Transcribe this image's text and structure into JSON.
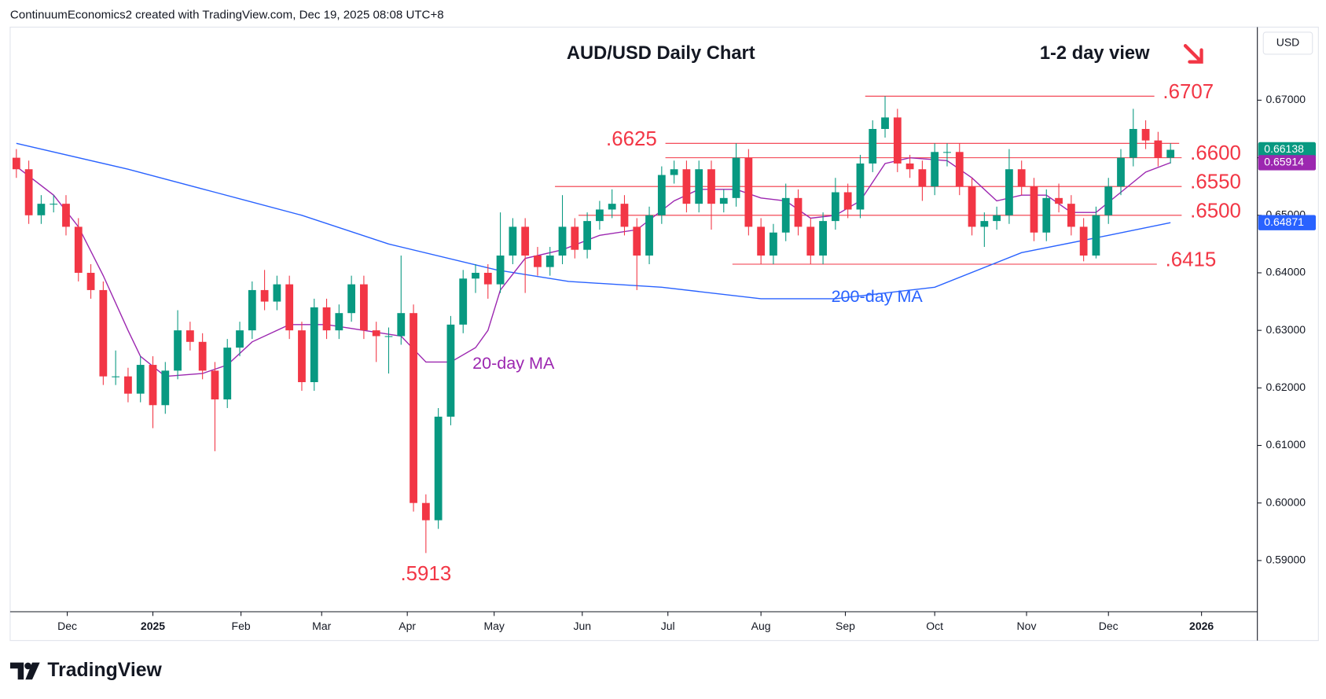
{
  "header": "ContinuumEconomics2 created with TradingView.com, Dec 19, 2025 08:08 UTC+8",
  "brand": "TradingView",
  "chart_data": {
    "type": "candlestick",
    "title": "AUD/USD Daily Chart",
    "annotation": "1-2 day view",
    "y_unit": "USD",
    "up_color": "#089981",
    "down_color": "#f23645",
    "grid": false,
    "open": [
      0.66,
      0.658,
      0.65,
      0.652,
      0.652,
      0.648,
      0.64,
      0.637,
      0.622,
      0.622,
      0.619,
      0.624,
      0.617,
      0.623,
      0.63,
      0.628,
      0.623,
      0.618,
      0.627,
      0.63,
      0.637,
      0.635,
      0.638,
      0.63,
      0.621,
      0.634,
      0.63,
      0.633,
      0.638,
      0.63,
      0.629,
      0.629,
      0.633,
      0.6,
      0.597,
      0.615,
      0.631,
      0.639,
      0.64,
      0.638,
      0.643,
      0.648,
      0.643,
      0.641,
      0.643,
      0.648,
      0.644,
      0.649,
      0.651,
      0.652,
      0.648,
      0.643,
      0.65,
      0.657,
      0.658,
      0.652,
      0.658,
      0.652,
      0.653,
      0.66,
      0.648,
      0.643,
      0.647,
      0.653,
      0.648,
      0.643,
      0.649,
      0.654,
      0.651,
      0.659,
      0.665,
      0.667,
      0.659,
      0.658,
      0.655,
      0.661,
      0.661,
      0.655,
      0.648,
      0.649,
      0.65,
      0.658,
      0.655,
      0.647,
      0.653,
      0.652,
      0.648,
      0.643,
      0.65,
      0.655,
      0.66,
      0.665,
      0.663,
      0.66
    ],
    "high": [
      0.6615,
      0.6595,
      0.6535,
      0.6535,
      0.6535,
      0.6495,
      0.6415,
      0.6385,
      0.6265,
      0.6235,
      0.6255,
      0.6255,
      0.6245,
      0.6335,
      0.6315,
      0.6295,
      0.6245,
      0.6285,
      0.6315,
      0.6385,
      0.6405,
      0.6395,
      0.6395,
      0.6315,
      0.6355,
      0.6355,
      0.6345,
      0.6395,
      0.6395,
      0.6315,
      0.6305,
      0.643,
      0.6345,
      0.6015,
      0.6165,
      0.6325,
      0.6405,
      0.6415,
      0.6415,
      0.6505,
      0.6495,
      0.6495,
      0.6445,
      0.6445,
      0.6535,
      0.6495,
      0.6505,
      0.6525,
      0.6545,
      0.6535,
      0.6495,
      0.6515,
      0.6585,
      0.6595,
      0.6595,
      0.6595,
      0.6595,
      0.6545,
      0.6625,
      0.6615,
      0.6495,
      0.6485,
      0.6555,
      0.6545,
      0.6495,
      0.6505,
      0.6565,
      0.6555,
      0.6605,
      0.6665,
      0.6707,
      0.6685,
      0.6605,
      0.6595,
      0.6625,
      0.6625,
      0.6625,
      0.6565,
      0.6505,
      0.6515,
      0.6615,
      0.6595,
      0.6565,
      0.6545,
      0.6555,
      0.6535,
      0.6495,
      0.6515,
      0.6565,
      0.6615,
      0.6685,
      0.6665,
      0.6645,
      0.6625
    ],
    "low": [
      0.6565,
      0.6485,
      0.6485,
      0.6505,
      0.6465,
      0.6385,
      0.6355,
      0.6205,
      0.6205,
      0.6175,
      0.6175,
      0.613,
      0.6155,
      0.6215,
      0.6265,
      0.6215,
      0.609,
      0.6165,
      0.6255,
      0.6285,
      0.6335,
      0.6335,
      0.6285,
      0.6195,
      0.6195,
      0.6285,
      0.6285,
      0.6315,
      0.6285,
      0.6245,
      0.6225,
      0.6275,
      0.5985,
      0.5913,
      0.5955,
      0.6135,
      0.6295,
      0.6365,
      0.6355,
      0.6365,
      0.6415,
      0.6365,
      0.6395,
      0.6395,
      0.6415,
      0.6425,
      0.6425,
      0.6475,
      0.6495,
      0.6465,
      0.637,
      0.6415,
      0.6485,
      0.6555,
      0.6505,
      0.6505,
      0.6475,
      0.6505,
      0.6515,
      0.6465,
      0.6415,
      0.6415,
      0.6455,
      0.6465,
      0.6415,
      0.6415,
      0.6475,
      0.6495,
      0.6495,
      0.6575,
      0.6635,
      0.6575,
      0.6565,
      0.6525,
      0.6535,
      0.6585,
      0.6535,
      0.6465,
      0.6445,
      0.6475,
      0.6485,
      0.6535,
      0.6455,
      0.6455,
      0.6505,
      0.6465,
      0.642,
      0.6425,
      0.6485,
      0.6535,
      0.6585,
      0.6615,
      0.6585,
      0.659
    ],
    "close": [
      0.658,
      0.65,
      0.652,
      0.652,
      0.648,
      0.64,
      0.637,
      0.622,
      0.622,
      0.619,
      0.624,
      0.617,
      0.623,
      0.63,
      0.628,
      0.623,
      0.618,
      0.627,
      0.63,
      0.637,
      0.635,
      0.638,
      0.63,
      0.621,
      0.634,
      0.63,
      0.633,
      0.638,
      0.63,
      0.629,
      0.629,
      0.633,
      0.6,
      0.597,
      0.615,
      0.631,
      0.639,
      0.64,
      0.638,
      0.643,
      0.648,
      0.643,
      0.641,
      0.643,
      0.648,
      0.644,
      0.649,
      0.651,
      0.652,
      0.648,
      0.643,
      0.65,
      0.657,
      0.658,
      0.652,
      0.658,
      0.652,
      0.653,
      0.66,
      0.648,
      0.643,
      0.647,
      0.653,
      0.648,
      0.643,
      0.649,
      0.654,
      0.651,
      0.659,
      0.665,
      0.667,
      0.659,
      0.658,
      0.655,
      0.661,
      0.661,
      0.655,
      0.648,
      0.649,
      0.65,
      0.658,
      0.655,
      0.647,
      0.653,
      0.652,
      0.648,
      0.643,
      0.65,
      0.655,
      0.66,
      0.665,
      0.663,
      0.66,
      0.66138
    ],
    "xlim": [
      -0.5,
      100
    ],
    "xticks": [
      {
        "value": 4.1,
        "label": "Dec"
      },
      {
        "value": 11,
        "label": "2025"
      },
      {
        "value": 18.1,
        "label": "Feb"
      },
      {
        "value": 24.6,
        "label": "Mar"
      },
      {
        "value": 31.5,
        "label": "Apr"
      },
      {
        "value": 38.5,
        "label": "May"
      },
      {
        "value": 45.6,
        "label": "Jun"
      },
      {
        "value": 52.5,
        "label": "Jul"
      },
      {
        "value": 60,
        "label": "Aug"
      },
      {
        "value": 66.8,
        "label": "Sep"
      },
      {
        "value": 74,
        "label": "Oct"
      },
      {
        "value": 81.4,
        "label": "Nov"
      },
      {
        "value": 88,
        "label": "Dec"
      },
      {
        "value": 95.5,
        "label": "2026"
      }
    ],
    "ylim": [
      0.5811,
      0.6827
    ],
    "yticks": [
      {
        "value": 0.59,
        "label": "0.59000"
      },
      {
        "value": 0.6,
        "label": "0.60000"
      },
      {
        "value": 0.61,
        "label": "0.61000"
      },
      {
        "value": 0.62,
        "label": "0.62000"
      },
      {
        "value": 0.63,
        "label": "0.63000"
      },
      {
        "value": 0.64,
        "label": "0.64000"
      },
      {
        "value": 0.65,
        "label": "0.65000"
      },
      {
        "value": 0.66,
        "label": "0.66000"
      },
      {
        "value": 0.67,
        "label": "0.67000"
      }
    ],
    "moving_averages": [
      {
        "name": "200-day MA",
        "color": "#2962ff",
        "x": [
          0,
          9,
          16,
          23,
          30,
          38.7,
          44.5,
          52,
          60,
          66,
          74,
          81,
          88,
          93
        ],
        "values": [
          0.6625,
          0.658,
          0.654,
          0.65,
          0.645,
          0.6405,
          0.6385,
          0.6375,
          0.6355,
          0.6355,
          0.6375,
          0.6435,
          0.6465,
          0.64871
        ]
      },
      {
        "name": "20-day MA",
        "color": "#9c27b0",
        "x": [
          0,
          3,
          5,
          7,
          9,
          10,
          12,
          15,
          17,
          19,
          22,
          25,
          28,
          31,
          33,
          35,
          37,
          38,
          39,
          41,
          44,
          47,
          50,
          53,
          55,
          58,
          60,
          62,
          64,
          66,
          68,
          70,
          72,
          75,
          77,
          79,
          81,
          83,
          85,
          87,
          89,
          91,
          93
        ],
        "values": [
          0.6585,
          0.6535,
          0.648,
          0.6395,
          0.63,
          0.6255,
          0.622,
          0.6225,
          0.624,
          0.628,
          0.631,
          0.631,
          0.63,
          0.629,
          0.6245,
          0.6245,
          0.627,
          0.63,
          0.637,
          0.6425,
          0.644,
          0.6465,
          0.6475,
          0.6525,
          0.6545,
          0.6545,
          0.653,
          0.6525,
          0.6495,
          0.65,
          0.6525,
          0.659,
          0.66,
          0.6595,
          0.6565,
          0.6525,
          0.6535,
          0.6535,
          0.6505,
          0.6505,
          0.654,
          0.6575,
          0.65914
        ]
      }
    ],
    "levels": [
      {
        "label": ".6707",
        "value": 0.6707,
        "x": [
          68.4,
          91.7
        ],
        "label_side": "right"
      },
      {
        "label": ".6625",
        "value": 0.6625,
        "x": [
          52.3,
          93.7
        ],
        "label_side": "left"
      },
      {
        "label": ".6600",
        "value": 0.66,
        "x": [
          52.3,
          93.9
        ],
        "label_side": "right"
      },
      {
        "label": ".6550",
        "value": 0.655,
        "x": [
          43.4,
          93.9
        ],
        "label_side": "right"
      },
      {
        "label": ".6500",
        "value": 0.65,
        "x": [
          45.3,
          93.9
        ],
        "label_side": "right"
      },
      {
        "label": ".6415",
        "value": 0.6415,
        "x": [
          57.7,
          91.9
        ],
        "label_side": "right"
      }
    ],
    "low_label": {
      "label": ".5913",
      "value": 0.5913,
      "x": 33
    },
    "last_values": [
      0.66138,
      0.65914,
      0.64871
    ],
    "last_colors": [
      "#089981",
      "#9c27b0",
      "#2962ff"
    ]
  }
}
